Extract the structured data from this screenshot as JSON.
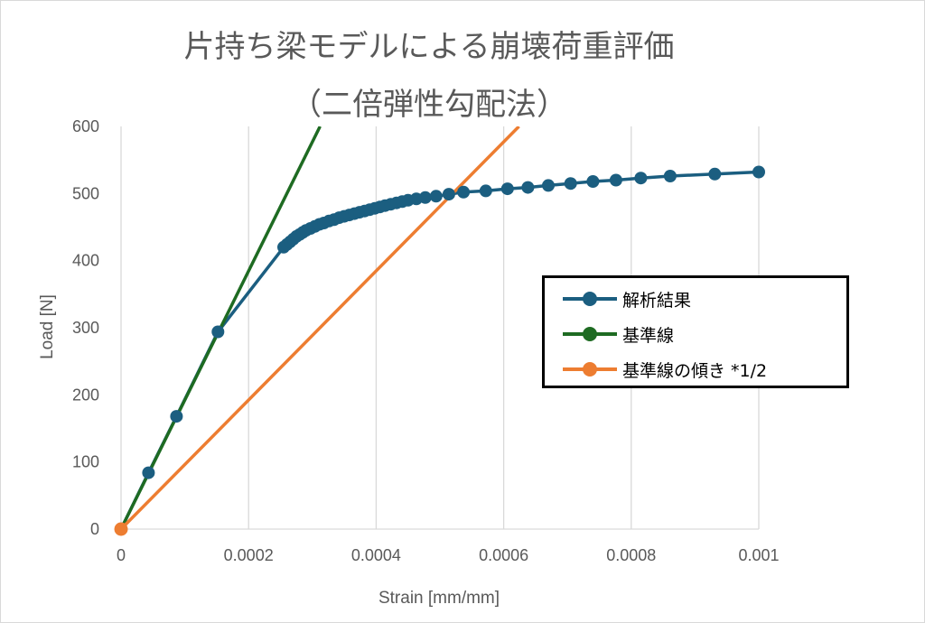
{
  "chart_data": {
    "type": "line",
    "title": "片持ち梁モデルによる崩壊荷重評価",
    "subtitle": "（二倍弾性勾配法）",
    "xlabel": "Strain [mm/mm]",
    "ylabel": "Load [N]",
    "xlim": [
      0,
      0.001
    ],
    "ylim": [
      0,
      600
    ],
    "x_ticks": [
      "0",
      "0.0002",
      "0.0004",
      "0.0006",
      "0.0008",
      "0.001"
    ],
    "y_ticks": [
      "0",
      "100",
      "200",
      "300",
      "400",
      "500",
      "600"
    ],
    "grid": "vertical",
    "legend_position": "right",
    "series": [
      {
        "name": "解析結果",
        "color": "#1b5e80",
        "markers": true,
        "x": [
          0,
          4.3e-05,
          8.7e-05,
          0.000152,
          0.000255,
          0.00026,
          0.000265,
          0.00027,
          0.000275,
          0.00028,
          0.000285,
          0.00029,
          0.000297,
          0.000304,
          0.000311,
          0.000318,
          0.000326,
          0.000334,
          0.000342,
          0.00035,
          0.000358,
          0.000366,
          0.000374,
          0.000382,
          0.00039,
          0.000398,
          0.000406,
          0.000414,
          0.000423,
          0.000432,
          0.000441,
          0.00045,
          0.000463,
          0.000477,
          0.000494,
          0.000514,
          0.000537,
          0.000572,
          0.000606,
          0.000638,
          0.00067,
          0.000705,
          0.00074,
          0.000776,
          0.000815,
          0.000861,
          0.000931,
          0.001
        ],
        "y": [
          0,
          84,
          168,
          294,
          420,
          424,
          428,
          432,
          436,
          439,
          442,
          445,
          448,
          451,
          454,
          456,
          459,
          461,
          464,
          466,
          468,
          470,
          472,
          474,
          476,
          478,
          480,
          482,
          484,
          486,
          488,
          490,
          492,
          494,
          496,
          499,
          502,
          504,
          507,
          509,
          512,
          515,
          518,
          520,
          523,
          526,
          529,
          532
        ]
      },
      {
        "name": "基準線",
        "color": "#1e6b22",
        "markers": false,
        "x": [
          0,
          0.000312
        ],
        "y": [
          0,
          600
        ]
      },
      {
        "name": "基準線の傾き *1/2",
        "color": "#ed7d31",
        "markers": false,
        "x": [
          0,
          0.000624
        ],
        "y": [
          0,
          600
        ]
      }
    ]
  }
}
